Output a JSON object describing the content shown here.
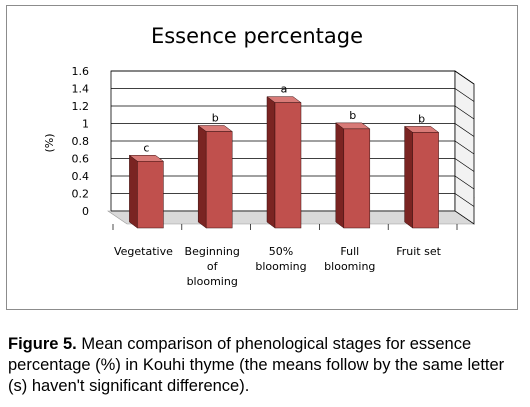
{
  "chart_data": {
    "type": "bar",
    "title": "Essence percentage",
    "ylabel": "(%)",
    "xlabel": "",
    "ylim": [
      0,
      1.6
    ],
    "yticks": [
      "0",
      "0.2",
      "0.4",
      "0.6",
      "0.8",
      "1",
      "1.2",
      "1.4",
      "1.6"
    ],
    "categories": [
      [
        "Vegetative"
      ],
      [
        "Beginning",
        "of",
        "blooming"
      ],
      [
        "50%",
        "blooming"
      ],
      [
        "Full",
        "blooming"
      ],
      [
        "Fruit set"
      ]
    ],
    "values": [
      0.66,
      1.0,
      1.33,
      1.03,
      0.99
    ],
    "letters": [
      "c",
      "b",
      "a",
      "b",
      "b"
    ],
    "grid": true,
    "legend": "none",
    "style": "3d-column"
  },
  "colors": {
    "bar_front": "#c0504d",
    "bar_side": "#7a2422",
    "bar_top": "#d87a77",
    "floor": "#d9d9d9",
    "wall": "#ffffff",
    "grid": "#000000"
  },
  "caption": {
    "label": "Figure 5.",
    "text": " Mean comparison of phenological stages for essence percentage (%) in Kouhi thyme (the means follow by the same letter (s) haven't significant difference)."
  }
}
